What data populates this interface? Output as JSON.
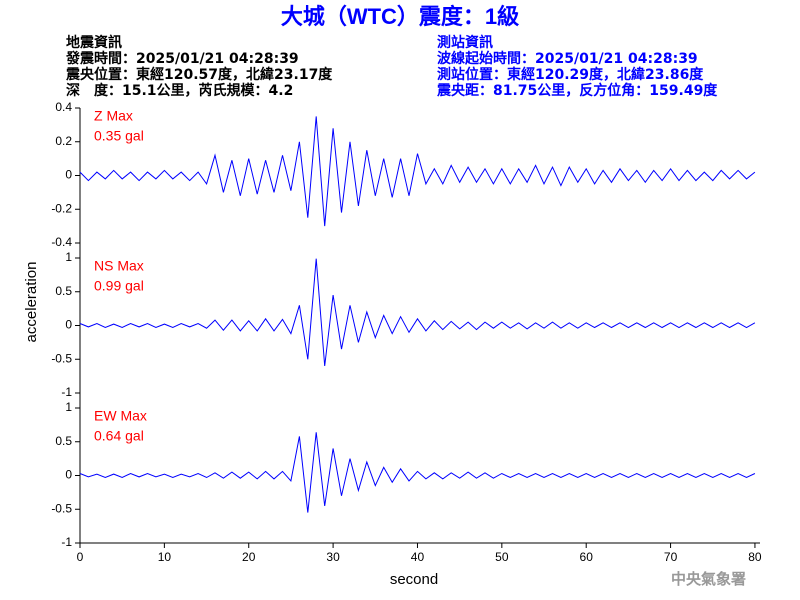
{
  "header": {
    "title": "大城（WTC）震度：1級",
    "left": [
      "地震資訊",
      "發震時間：2025/01/21 04:28:39",
      "震央位置：東經120.57度，北緯23.17度",
      "深　度：15.1公里，芮氏規模：4.2"
    ],
    "right": [
      "測站資訊",
      "波線起始時間：2025/01/21 04:28:39",
      "測站位置：東經120.29度，北緯23.86度",
      "震央距：81.75公里，反方位角：159.49度"
    ],
    "footer": "中央氣象署"
  },
  "chart_data": {
    "type": "line",
    "xlabel": "second",
    "ylabel": "acceleration",
    "xlim": [
      0,
      80.6
    ],
    "xticks": [
      0,
      10,
      20,
      30,
      40,
      50,
      60,
      70,
      80
    ],
    "x": [
      0,
      1,
      2,
      3,
      4,
      5,
      6,
      7,
      8,
      9,
      10,
      11,
      12,
      13,
      14,
      15,
      16,
      17,
      18,
      19,
      20,
      21,
      22,
      23,
      24,
      25,
      26,
      27,
      28,
      29,
      30,
      31,
      32,
      33,
      34,
      35,
      36,
      37,
      38,
      39,
      40,
      41,
      42,
      43,
      44,
      45,
      46,
      47,
      48,
      49,
      50,
      51,
      52,
      53,
      54,
      55,
      56,
      57,
      58,
      59,
      60,
      61,
      62,
      63,
      64,
      65,
      66,
      67,
      68,
      69,
      70,
      71,
      72,
      73,
      74,
      75,
      76,
      77,
      78,
      79,
      80
    ],
    "series": [
      {
        "name": "Z Max",
        "peak": "0.35 gal",
        "color": "#0000ff",
        "label_color": "#ff0000",
        "ylim": [
          -0.4,
          0.4
        ],
        "yticks": [
          0.4,
          0.2,
          0,
          -0.2,
          -0.4
        ],
        "values": [
          0.02,
          -0.03,
          0.02,
          -0.02,
          0.03,
          -0.02,
          0.02,
          -0.03,
          0.02,
          -0.02,
          0.03,
          -0.02,
          0.02,
          -0.03,
          0.02,
          -0.05,
          0.12,
          -0.1,
          0.09,
          -0.12,
          0.1,
          -0.11,
          0.09,
          -0.1,
          0.12,
          -0.09,
          0.2,
          -0.25,
          0.35,
          -0.3,
          0.28,
          -0.22,
          0.2,
          -0.18,
          0.15,
          -0.12,
          0.1,
          -0.13,
          0.1,
          -0.12,
          0.13,
          -0.05,
          0.04,
          -0.05,
          0.06,
          -0.04,
          0.05,
          -0.04,
          0.04,
          -0.05,
          0.04,
          -0.05,
          0.04,
          -0.04,
          0.06,
          -0.05,
          0.05,
          -0.06,
          0.05,
          -0.04,
          0.04,
          -0.05,
          0.03,
          -0.04,
          0.04,
          -0.03,
          0.03,
          -0.04,
          0.03,
          -0.03,
          0.04,
          -0.03,
          0.03,
          -0.03,
          0.02,
          -0.03,
          0.03,
          -0.02,
          0.03,
          -0.02,
          0.02
        ]
      },
      {
        "name": "NS Max",
        "peak": "0.99 gal",
        "color": "#0000ff",
        "label_color": "#ff0000",
        "ylim": [
          -1,
          1
        ],
        "yticks": [
          1,
          0.5,
          0,
          -0.5,
          -1
        ],
        "values": [
          0.03,
          -0.02,
          0.03,
          -0.03,
          0.02,
          -0.03,
          0.03,
          -0.02,
          0.03,
          -0.03,
          0.02,
          -0.03,
          0.03,
          -0.02,
          0.03,
          -0.04,
          0.08,
          -0.07,
          0.08,
          -0.08,
          0.07,
          -0.08,
          0.1,
          -0.08,
          0.09,
          -0.12,
          0.3,
          -0.5,
          0.99,
          -0.6,
          0.45,
          -0.35,
          0.3,
          -0.25,
          0.2,
          -0.18,
          0.15,
          -0.12,
          0.13,
          -0.1,
          0.1,
          -0.08,
          0.07,
          -0.06,
          0.06,
          -0.05,
          0.05,
          -0.06,
          0.05,
          -0.04,
          0.05,
          -0.04,
          0.04,
          -0.05,
          0.04,
          -0.04,
          0.05,
          -0.04,
          0.04,
          -0.04,
          0.04,
          -0.03,
          0.04,
          -0.03,
          0.04,
          -0.03,
          0.04,
          -0.03,
          0.04,
          -0.03,
          0.04,
          -0.03,
          0.04,
          -0.03,
          0.04,
          -0.03,
          0.04,
          -0.03,
          0.04,
          -0.03,
          0.04
        ]
      },
      {
        "name": "EW Max",
        "peak": "0.64 gal",
        "color": "#0000ff",
        "label_color": "#ff0000",
        "ylim": [
          -1,
          1
        ],
        "yticks": [
          1,
          0.5,
          0,
          -0.5,
          -1
        ],
        "values": [
          0.03,
          -0.02,
          0.02,
          -0.03,
          0.02,
          -0.03,
          0.03,
          -0.02,
          0.03,
          -0.02,
          0.02,
          -0.03,
          0.02,
          -0.02,
          0.03,
          -0.03,
          0.04,
          -0.04,
          0.05,
          -0.04,
          0.05,
          -0.05,
          0.06,
          -0.05,
          0.06,
          -0.08,
          0.58,
          -0.55,
          0.64,
          -0.45,
          0.4,
          -0.3,
          0.25,
          -0.22,
          0.2,
          -0.15,
          0.12,
          -0.1,
          0.1,
          -0.08,
          0.06,
          -0.05,
          0.04,
          -0.05,
          0.04,
          -0.04,
          0.05,
          -0.04,
          0.04,
          -0.04,
          0.03,
          -0.03,
          0.03,
          -0.03,
          0.03,
          -0.03,
          0.03,
          -0.03,
          0.03,
          -0.03,
          0.03,
          -0.03,
          0.03,
          -0.03,
          0.03,
          -0.03,
          0.03,
          -0.03,
          0.03,
          -0.03,
          0.03,
          -0.03,
          0.03,
          -0.03,
          0.03,
          -0.03,
          0.03,
          -0.03,
          0.03,
          -0.03,
          0.03
        ]
      }
    ]
  }
}
